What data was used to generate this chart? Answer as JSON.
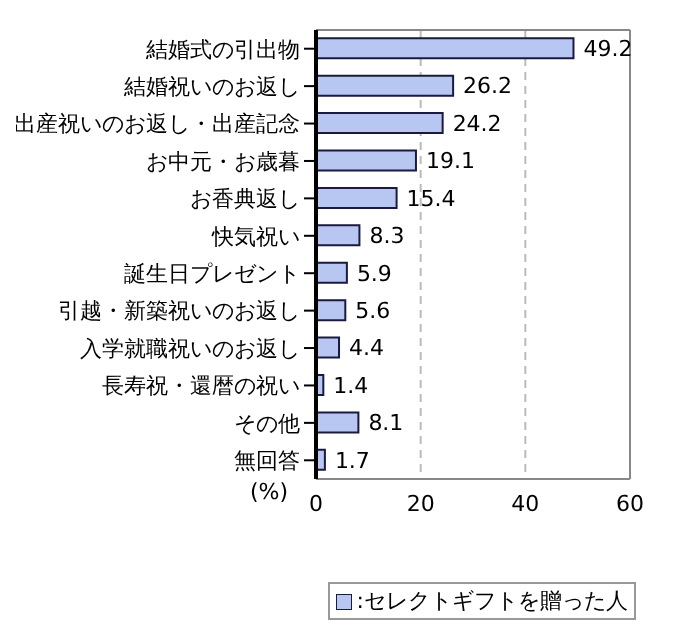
{
  "chart_data": {
    "type": "bar",
    "orientation": "horizontal",
    "categories": [
      "結婚式の引出物",
      "結婚祝いのお返し",
      "出産祝いのお返し・出産記念",
      "お中元・お歳暮",
      "お香典返し",
      "快気祝い",
      "誕生日プレゼント",
      "引越・新築祝いのお返し",
      "入学就職祝いのお返し",
      "長寿祝・還暦の祝い",
      "その他",
      "無回答"
    ],
    "series": [
      {
        "name": ":セレクトギフトを贈った人",
        "color": "#b8c6f2",
        "values": [
          49.2,
          26.2,
          24.2,
          19.1,
          15.4,
          8.3,
          5.9,
          5.6,
          4.4,
          1.4,
          8.1,
          1.7
        ]
      }
    ],
    "xlabel": "(%)",
    "xlim": [
      0,
      60
    ],
    "xticks": [
      0,
      20,
      40,
      60
    ],
    "grid": "x",
    "data_labels": true,
    "legend": "bottom right"
  }
}
